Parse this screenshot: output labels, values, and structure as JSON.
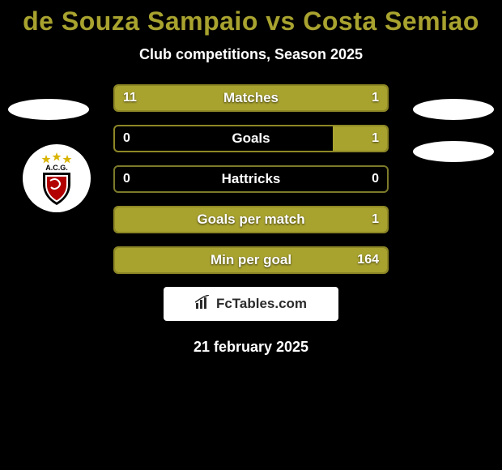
{
  "title": "de Souza Sampaio vs Costa Semiao",
  "subtitle": "Club competitions, Season 2025",
  "date": "21 february 2025",
  "footer_brand": "FcTables.com",
  "colors": {
    "title": "#a8a22f",
    "text": "#ffffff",
    "background": "#000000",
    "bar_fill": "#a8a22f",
    "bar_empty_border": "#7c7a2a",
    "bar_fill_border": "#8d8726"
  },
  "badge": {
    "text_top": "A.C.G.",
    "star_color": "#d9b400",
    "shield_outer": "#000000",
    "shield_inner": "#b30000",
    "shield_stroke": "#ffffff"
  },
  "stats": [
    {
      "label": "Matches",
      "left_value": "11",
      "right_value": "1",
      "left_pct": 91.7,
      "right_pct": 8.3
    },
    {
      "label": "Goals",
      "left_value": "0",
      "right_value": "1",
      "left_pct": 0,
      "right_pct": 20
    },
    {
      "label": "Hattricks",
      "left_value": "0",
      "right_value": "0",
      "left_pct": 0,
      "right_pct": 0
    },
    {
      "label": "Goals per match",
      "left_value": "",
      "right_value": "1",
      "left_pct": 0,
      "right_pct": 100
    },
    {
      "label": "Min per goal",
      "left_value": "",
      "right_value": "164",
      "left_pct": 0,
      "right_pct": 100
    }
  ]
}
